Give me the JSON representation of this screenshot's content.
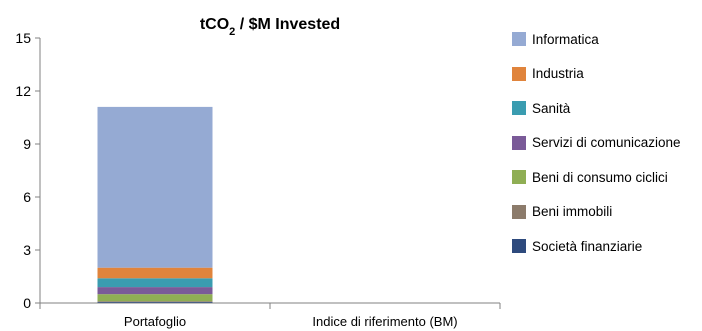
{
  "chart_data": {
    "type": "bar",
    "stacked": true,
    "title": "tCO",
    "title_subscript": "2",
    "title_suffix": " / $M Invested",
    "categories": [
      "Portafoglio",
      "Indice di riferimento (BM)"
    ],
    "ylim": [
      0,
      15
    ],
    "yticks": [
      "0",
      "3",
      "6",
      "9",
      "12",
      "15"
    ],
    "grid": false,
    "legend_position": "right",
    "series": [
      {
        "name": "Società finanziarie",
        "color": "#2e4a7d",
        "values": [
          0.05,
          0
        ]
      },
      {
        "name": "Beni immobili",
        "color": "#8c7b6b",
        "values": [
          0.05,
          0
        ]
      },
      {
        "name": "Beni di consumo ciclici",
        "color": "#8fae54",
        "values": [
          0.4,
          0
        ]
      },
      {
        "name": "Servizi di comunicazione",
        "color": "#7a5a98",
        "values": [
          0.4,
          0
        ]
      },
      {
        "name": "Sanità",
        "color": "#3a9cb0",
        "values": [
          0.5,
          0
        ]
      },
      {
        "name": "Industria",
        "color": "#e0843c",
        "values": [
          0.6,
          0
        ]
      },
      {
        "name": "Informatica",
        "color": "#95aad3",
        "values": [
          9.1,
          0
        ]
      }
    ]
  }
}
